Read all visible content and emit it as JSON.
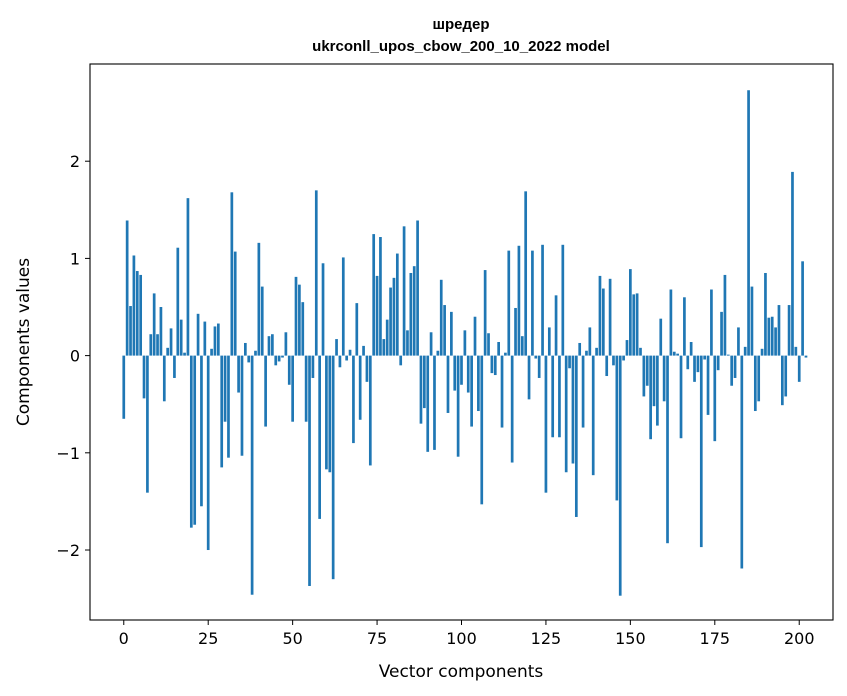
{
  "chart_data": {
    "type": "bar",
    "title": "шредер",
    "subtitle": "ukrconll_upos_cbow_200_10_2022 model",
    "xlabel": "Vector components",
    "ylabel": "Components values",
    "xlim": [
      -10,
      210
    ],
    "ylim": [
      -2.72,
      3.0
    ],
    "xticks": [
      0,
      25,
      50,
      75,
      100,
      125,
      150,
      175,
      200
    ],
    "yticks": [
      -2,
      -1,
      0,
      1,
      2
    ],
    "ytick_labels": [
      "−2",
      "−1",
      "0",
      "1",
      "2"
    ],
    "grid": false,
    "legend": "none",
    "bar_color": "#1f77b4",
    "values": [
      -0.65,
      1.39,
      0.51,
      1.03,
      0.87,
      0.83,
      -0.44,
      -1.41,
      0.22,
      0.64,
      0.22,
      0.5,
      -0.47,
      0.08,
      0.28,
      -0.23,
      1.11,
      0.37,
      0.03,
      1.62,
      -1.77,
      -1.74,
      0.43,
      -1.55,
      0.35,
      -2.0,
      0.07,
      0.3,
      0.33,
      -1.15,
      -0.68,
      -1.05,
      1.68,
      1.07,
      -0.38,
      -1.03,
      0.13,
      -0.07,
      -2.46,
      0.05,
      1.16,
      0.71,
      -0.73,
      0.2,
      0.22,
      -0.1,
      -0.06,
      -0.02,
      0.24,
      -0.3,
      -0.68,
      0.81,
      0.73,
      0.55,
      -0.68,
      -2.37,
      -0.23,
      1.7,
      -1.68,
      0.95,
      -1.17,
      -1.2,
      -2.3,
      0.17,
      -0.12,
      1.01,
      -0.05,
      0.06,
      -0.9,
      0.54,
      -0.66,
      0.1,
      -0.27,
      -1.13,
      1.25,
      0.82,
      1.22,
      0.17,
      0.37,
      0.7,
      0.8,
      1.05,
      -0.1,
      1.33,
      0.26,
      0.85,
      0.92,
      1.39,
      -0.7,
      -0.54,
      -0.99,
      0.24,
      -0.97,
      0.05,
      0.78,
      0.52,
      -0.59,
      0.45,
      -0.36,
      -1.04,
      -0.3,
      0.26,
      -0.38,
      -0.73,
      0.4,
      -0.57,
      -1.53,
      0.88,
      0.23,
      -0.18,
      -0.2,
      0.14,
      -0.74,
      0.03,
      1.08,
      -1.1,
      0.49,
      1.13,
      0.2,
      1.69,
      -0.45,
      1.08,
      -0.03,
      -0.23,
      1.14,
      -1.41,
      0.29,
      -0.84,
      0.62,
      -0.84,
      1.14,
      -1.2,
      -0.13,
      -1.11,
      -1.66,
      0.13,
      -0.74,
      0.05,
      0.29,
      -1.23,
      0.08,
      0.82,
      0.69,
      -0.21,
      0.79,
      -0.1,
      -1.49,
      -2.47,
      -0.05,
      0.16,
      0.89,
      0.63,
      0.64,
      0.08,
      -0.42,
      -0.31,
      -0.86,
      -0.52,
      -0.72,
      0.38,
      -0.47,
      -1.93,
      0.68,
      0.04,
      0.02,
      -0.85,
      0.6,
      -0.14,
      0.14,
      -0.27,
      -0.17,
      -1.97,
      -0.04,
      -0.61,
      0.68,
      -0.88,
      -0.15,
      0.45,
      0.83,
      0.01,
      -0.31,
      -0.23,
      0.29,
      -2.19,
      0.09,
      2.73,
      0.71,
      -0.57,
      -0.47,
      0.07,
      0.85,
      0.39,
      0.4,
      0.29,
      0.52,
      -0.51,
      -0.42,
      0.52,
      1.89,
      0.09,
      -0.27,
      0.97,
      -0.02
    ]
  }
}
